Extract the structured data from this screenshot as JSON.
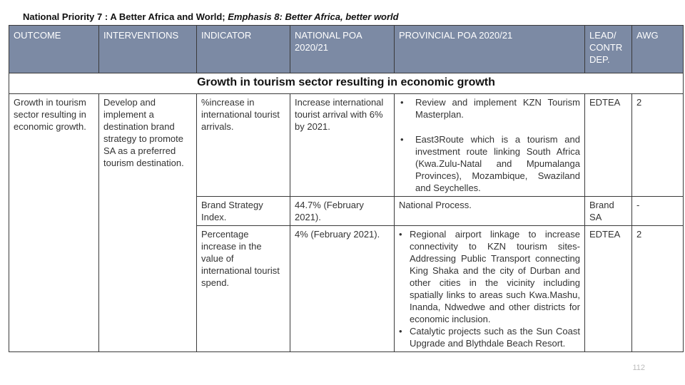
{
  "title": {
    "plain": "National Priority 7 : A Better Africa and World; ",
    "italic": "Emphasis 8: Better Africa, better world"
  },
  "headers": {
    "outcome": "OUTCOME",
    "interventions": "INTERVENTIONS",
    "indicator": "INDICATOR",
    "national_poa": "NATIONAL POA 2020/21",
    "provincial_poa": "PROVINCIAL POA 2020/21",
    "lead": "LEAD/ CONTR DEP.",
    "awg": "AWG"
  },
  "band": "Growth in tourism sector resulting in economic growth",
  "outcome_text": "Growth in tourism sector resulting in economic growth.",
  "intervention_text": "Develop and implement a destination brand strategy to promote SA as a preferred tourism destination.",
  "rows": [
    {
      "indicator": "%increase in international tourist arrivals.",
      "national": "Increase international tourist arrival with 6% by 2021.",
      "provincial": [
        "Review and implement KZN Tourism Masterplan.",
        "East3Route which is a tourism and investment route linking South Africa (Kwa.Zulu-Natal and Mpumalanga Provinces), Mozambique, Swaziland and Seychelles."
      ],
      "lead": "EDTEA",
      "awg": "2"
    },
    {
      "indicator": "Brand Strategy Index.",
      "national": "44.7% (February 2021).",
      "provincial_text": "National Process.",
      "lead": "Brand SA",
      "awg": "-"
    },
    {
      "indicator": "Percentage increase in the value of international tourist spend.",
      "national": "4% (February 2021).",
      "provincial": [
        "Regional airport linkage to increase connectivity to KZN tourism sites- Addressing Public Transport connecting King Shaka and the city of Durban and other cities in the vicinity including spatially links to areas such Kwa.Mashu, Inanda, Ndwedwe and other districts for economic inclusion.",
        "Catalytic projects such as the Sun Coast Upgrade and Blythdale Beach Resort."
      ],
      "lead": "EDTEA",
      "awg": "2"
    }
  ],
  "page_number": "112"
}
